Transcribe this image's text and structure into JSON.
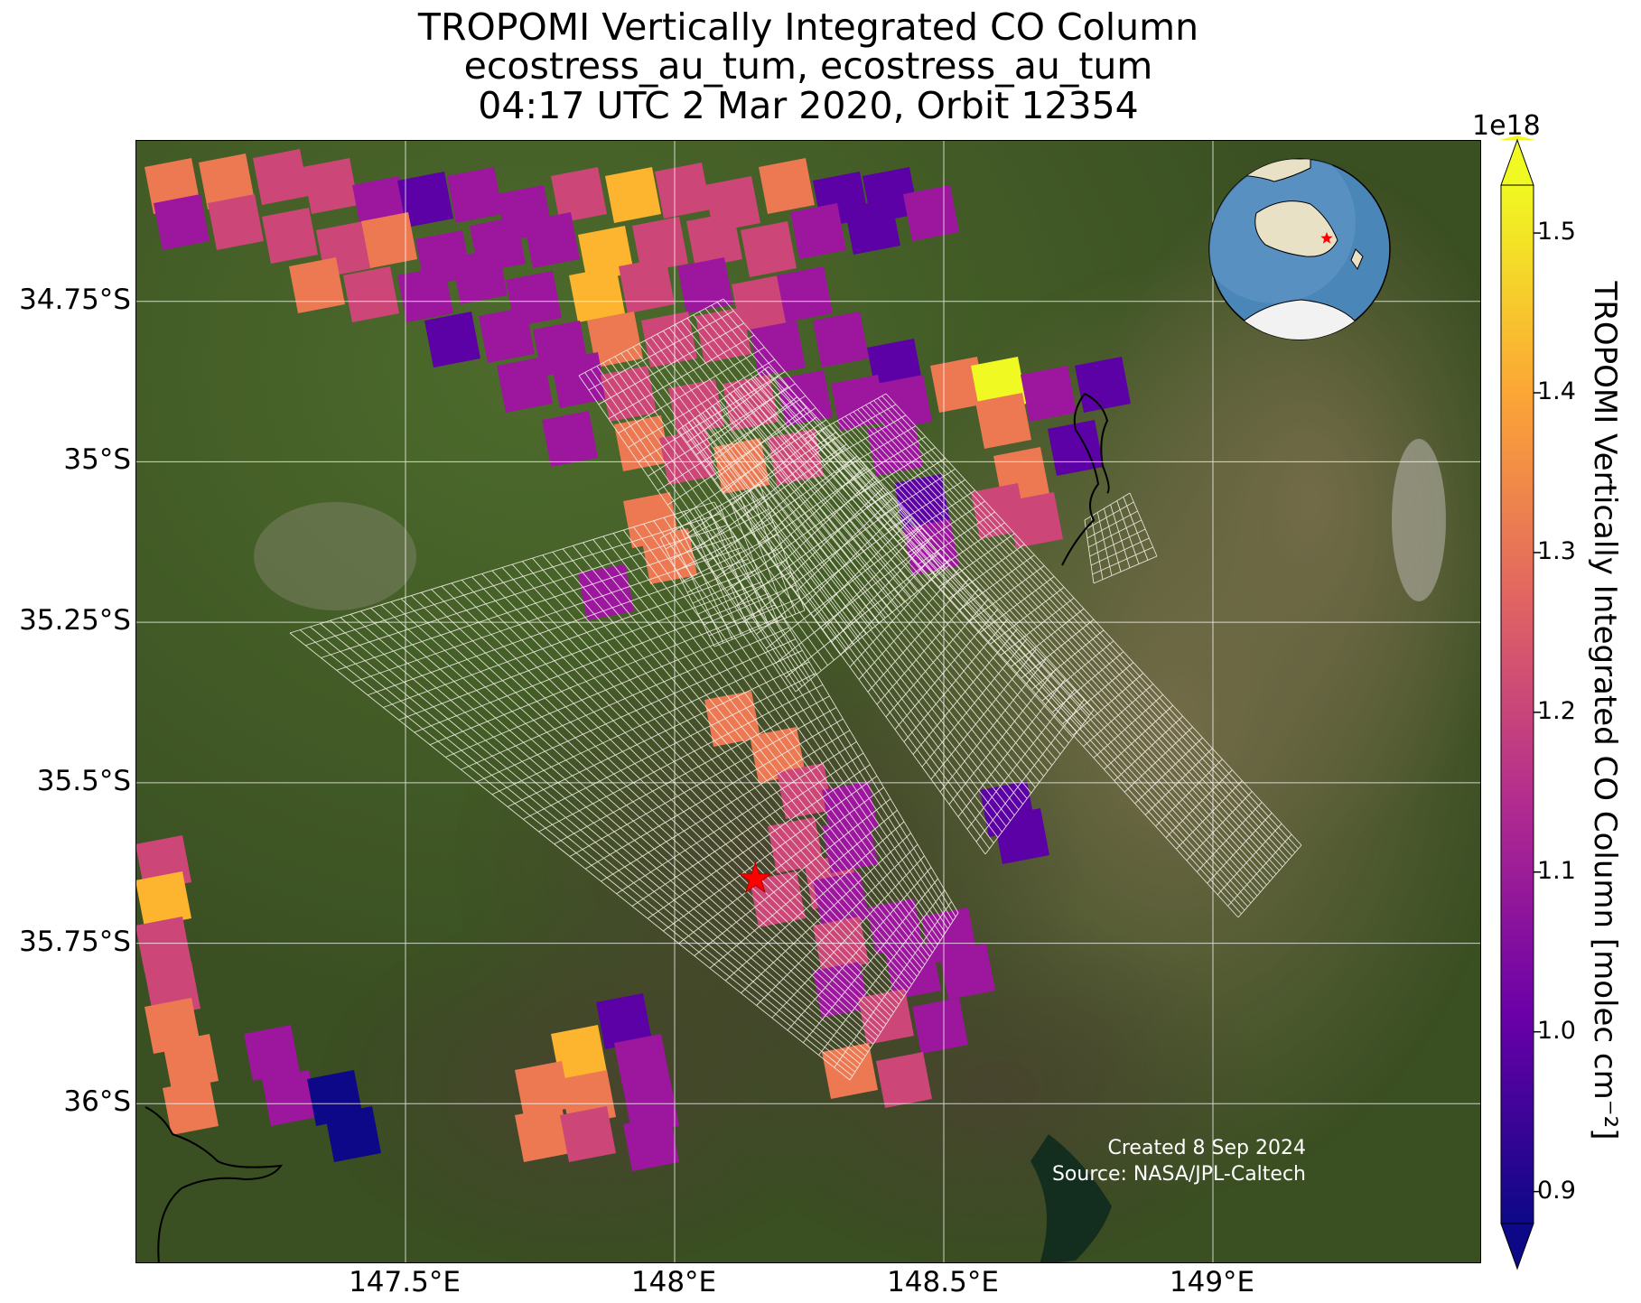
{
  "title": {
    "line1": "TROPOMI Vertically Integrated CO Column",
    "line2": "ecostress_au_tum, ecostress_au_tum",
    "line3": "04:17 UTC 2 Mar 2020, Orbit 12354"
  },
  "map": {
    "lon_range": [
      147.0,
      149.5
    ],
    "lat_range": [
      -36.25,
      -34.5
    ],
    "lat_ticks": [
      "34.75°S",
      "35°S",
      "35.25°S",
      "35.5°S",
      "35.75°S",
      "36°S"
    ],
    "lon_ticks": [
      "147.5°E",
      "148°E",
      "148.5°E",
      "149°E"
    ],
    "grid": true,
    "basemap": "satellite imagery",
    "site_marker": {
      "icon": "red-star-icon",
      "lon": 148.15,
      "lat": -35.65
    },
    "inset_globe": {
      "placement": "top-right",
      "icon": "globe-icon",
      "marker": "red-star-icon"
    }
  },
  "colorbar": {
    "label": "TROPOMI Vertically Integrated CO Column [molec cm⁻²]",
    "exponent": "1e18",
    "ticks": [
      "0.9",
      "1.0",
      "1.1",
      "1.2",
      "1.3",
      "1.4",
      "1.5"
    ],
    "range": [
      0.88,
      1.53
    ],
    "cmap": "plasma",
    "colors": [
      "#0d0887",
      "#6a00a8",
      "#b12a90",
      "#e16462",
      "#fca636",
      "#f0f921"
    ]
  },
  "credits": {
    "line1": "Created 8 Sep 2024",
    "line2": "Source: NASA/JPL-Caltech"
  }
}
